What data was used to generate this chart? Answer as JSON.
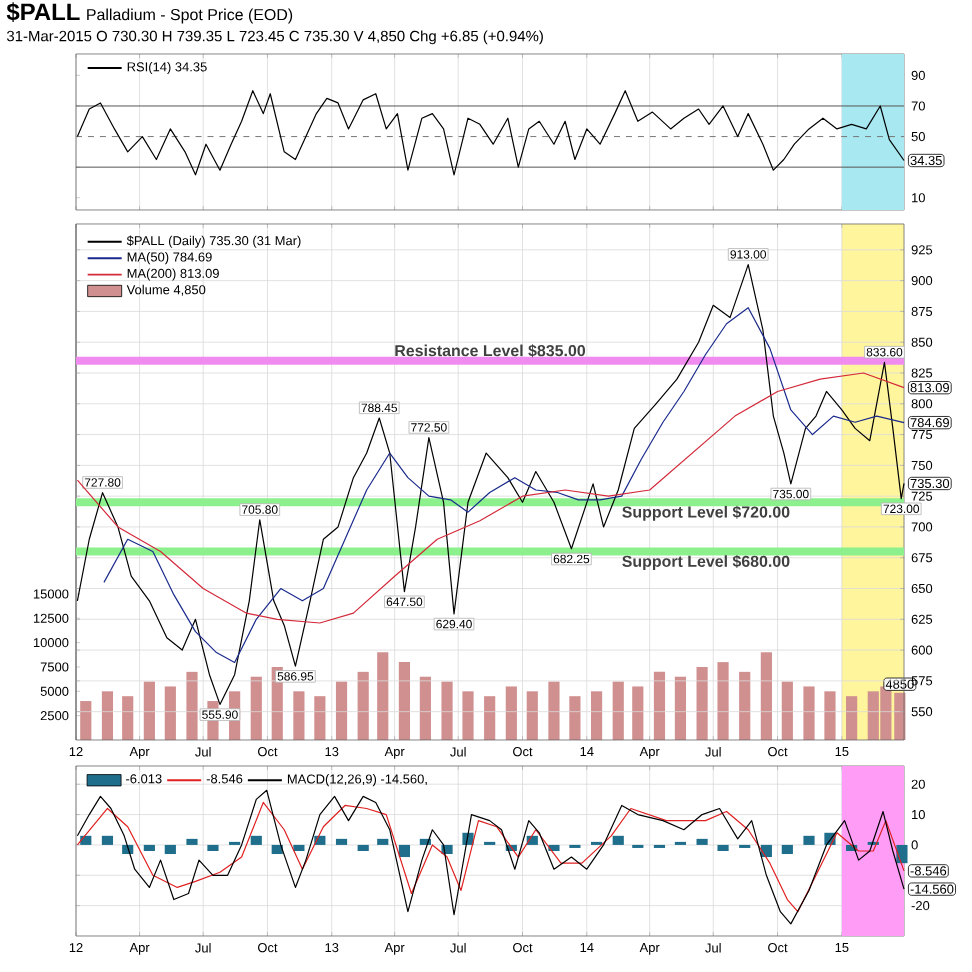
{
  "chart_data": [
    {
      "type": "line",
      "title": "$PALL",
      "subtitle": "Palladium - Spot Price (EOD)",
      "annotations": [
        "31-Mar-2015  O 730.30  H 739.35  L 723.45  C 735.30  V 4,850  Chg +6.85 (+0.94%)"
      ],
      "xlim": [
        "2012-01-01",
        "2015-03-31"
      ],
      "xticks": [
        {
          "value": "2012-01-01",
          "label": null
        },
        {
          "value": "2012-04-01",
          "label": null
        },
        {
          "value": "2012-07-01",
          "label": null
        },
        {
          "value": "2012-10-01",
          "label": null
        },
        {
          "value": "2013-01-01",
          "label": null
        },
        {
          "value": "2013-04-01",
          "label": null
        },
        {
          "value": "2013-07-01",
          "label": null
        },
        {
          "value": "2013-10-01",
          "label": null
        },
        {
          "value": "2014-01-01",
          "label": null
        },
        {
          "value": "2014-04-01",
          "label": null
        },
        {
          "value": "2014-07-01",
          "label": null
        },
        {
          "value": "2014-10-01",
          "label": null
        },
        {
          "value": "2015-01-01",
          "label": null
        }
      ],
      "ylim": [
        2,
        104
      ],
      "yticks": [
        10,
        {
          "value": 30,
          "label": null
        },
        50,
        70,
        90
      ],
      "tick_labels": "y",
      "grid": "x",
      "legend": "top left",
      "bands": [
        {
          "axis": "x",
          "from": "2015-01-01",
          "to": "2015-03-31",
          "color": "#a8e8f0"
        }
      ],
      "ref_lines": [
        {
          "axis": "y",
          "value": 70,
          "color": "#555555"
        },
        {
          "axis": "y",
          "value": 50,
          "color": "#777777",
          "line_style": "dashed"
        },
        {
          "axis": "y",
          "value": 30,
          "color": "#555555"
        }
      ],
      "series": [
        {
          "name": "RSI(14) 34.35",
          "color": "#000000",
          "x": [
            "2012-01-03",
            "2012-01-20",
            "2012-02-05",
            "2012-02-25",
            "2012-03-15",
            "2012-04-05",
            "2012-04-25",
            "2012-05-15",
            "2012-06-05",
            "2012-06-20",
            "2012-07-05",
            "2012-07-25",
            "2012-08-10",
            "2012-08-25",
            "2012-09-10",
            "2012-09-25",
            "2012-10-05",
            "2012-10-25",
            "2012-11-10",
            "2012-11-25",
            "2012-12-10",
            "2012-12-25",
            "2013-01-10",
            "2013-01-25",
            "2013-02-15",
            "2013-03-05",
            "2013-03-20",
            "2013-04-05",
            "2013-04-20",
            "2013-05-10",
            "2013-05-25",
            "2013-06-10",
            "2013-06-25",
            "2013-07-15",
            "2013-08-01",
            "2013-08-20",
            "2013-09-10",
            "2013-09-25",
            "2013-10-10",
            "2013-10-25",
            "2013-11-15",
            "2013-12-01",
            "2013-12-15",
            "2014-01-01",
            "2014-01-20",
            "2014-02-10",
            "2014-02-25",
            "2014-03-15",
            "2014-04-05",
            "2014-05-01",
            "2014-05-20",
            "2014-06-10",
            "2014-06-25",
            "2014-07-15",
            "2014-08-05",
            "2014-08-20",
            "2014-09-10",
            "2014-09-25",
            "2014-10-10",
            "2014-10-25",
            "2014-11-15",
            "2014-12-05",
            "2014-12-25",
            "2015-01-15",
            "2015-02-05",
            "2015-02-25",
            "2015-03-10",
            "2015-03-31"
          ],
          "values": [
            50,
            68,
            72,
            55,
            40,
            50,
            35,
            55,
            40,
            25,
            45,
            28,
            45,
            60,
            80,
            65,
            78,
            40,
            35,
            50,
            65,
            75,
            72,
            55,
            74,
            78,
            55,
            65,
            28,
            62,
            65,
            55,
            25,
            62,
            58,
            45,
            62,
            30,
            55,
            60,
            45,
            60,
            35,
            55,
            45,
            65,
            80,
            60,
            66,
            55,
            62,
            68,
            58,
            70,
            50,
            65,
            45,
            28,
            35,
            45,
            55,
            62,
            55,
            58,
            55,
            70,
            48,
            34.35
          ],
          "value_labels": [
            null,
            null,
            null,
            null,
            null,
            null,
            null,
            null,
            null,
            null,
            null,
            null,
            null,
            null,
            null,
            null,
            null,
            null,
            null,
            null,
            null,
            null,
            null,
            null,
            null,
            null,
            null,
            null,
            null,
            null,
            null,
            null,
            null,
            null,
            null,
            null,
            null,
            null,
            null,
            null,
            null,
            null,
            null,
            null,
            null,
            null,
            null,
            null,
            null,
            null,
            null,
            null,
            null,
            null,
            null,
            null,
            null,
            null,
            null,
            null,
            null,
            null,
            null,
            null,
            null,
            null,
            null,
            "34.35"
          ]
        }
      ]
    },
    {
      "type": "line",
      "xlim": [
        "2012-01-01",
        "2015-03-31"
      ],
      "xticks": [
        {
          "value": "2012-01-01",
          "label": "12"
        },
        {
          "value": "2012-04-01",
          "label": "Apr"
        },
        {
          "value": "2012-07-01",
          "label": "Jul"
        },
        {
          "value": "2012-10-01",
          "label": "Oct"
        },
        {
          "value": "2013-01-01",
          "label": "13"
        },
        {
          "value": "2013-04-01",
          "label": "Apr"
        },
        {
          "value": "2013-07-01",
          "label": "Jul"
        },
        {
          "value": "2013-10-01",
          "label": "Oct"
        },
        {
          "value": "2014-01-01",
          "label": "14"
        },
        {
          "value": "2014-04-01",
          "label": "Apr"
        },
        {
          "value": "2014-07-01",
          "label": "Jul"
        },
        {
          "value": "2014-10-01",
          "label": "Oct"
        },
        {
          "value": "2015-01-01",
          "label": "15"
        }
      ],
      "ylim": [
        527,
        946
      ],
      "yticks": [
        550,
        575,
        600,
        625,
        650,
        675,
        700,
        725,
        750,
        775,
        800,
        825,
        850,
        875,
        900,
        925
      ],
      "y2lim": [
        0,
        53000
      ],
      "y2ticks": [
        2500,
        5000,
        7500,
        10000,
        12500,
        15000
      ],
      "grid": true,
      "legend": "top left",
      "bands": [
        {
          "axis": "x",
          "from": "2015-01-01",
          "to": "2015-03-31",
          "color": "#fff59d"
        }
      ],
      "ref_lines": [
        {
          "axis": "y",
          "value": 835,
          "label": "Resistance Level $835.00",
          "color": "#f08cf0"
        },
        {
          "axis": "y",
          "value": 720,
          "label": "Support Level $720.00",
          "color": "#8cf08c"
        },
        {
          "axis": "y",
          "value": 680,
          "label": "Support Level $680.00",
          "color": "#8cf08c"
        }
      ],
      "series": [
        {
          "name": "Volume 4,850",
          "type": "bar",
          "axis": "y2",
          "color": "#d09090",
          "x": [
            "2012-01-15",
            "2012-02-15",
            "2012-03-15",
            "2012-04-15",
            "2012-05-15",
            "2012-06-15",
            "2012-07-15",
            "2012-08-15",
            "2012-09-15",
            "2012-10-15",
            "2012-11-15",
            "2012-12-15",
            "2013-01-15",
            "2013-02-15",
            "2013-03-15",
            "2013-04-15",
            "2013-05-15",
            "2013-06-15",
            "2013-07-15",
            "2013-08-15",
            "2013-09-15",
            "2013-10-15",
            "2013-11-15",
            "2013-12-15",
            "2014-01-15",
            "2014-02-15",
            "2014-03-15",
            "2014-04-15",
            "2014-05-15",
            "2014-06-15",
            "2014-07-15",
            "2014-08-15",
            "2014-09-15",
            "2014-10-15",
            "2014-11-15",
            "2014-12-15",
            "2015-01-15",
            "2015-02-15",
            "2015-03-05",
            "2015-03-25"
          ],
          "values": [
            4000,
            5000,
            4500,
            6000,
            5500,
            7000,
            4000,
            5000,
            6500,
            7500,
            5000,
            4500,
            6000,
            7000,
            9000,
            8000,
            6500,
            6000,
            5000,
            4500,
            5500,
            5000,
            6000,
            4500,
            5000,
            6000,
            5500,
            7000,
            6500,
            7500,
            8000,
            7000,
            9000,
            6000,
            5500,
            5000,
            4500,
            5000,
            5500,
            4850
          ],
          "value_labels": [
            null,
            null,
            null,
            null,
            null,
            null,
            null,
            null,
            null,
            null,
            null,
            null,
            null,
            null,
            null,
            null,
            null,
            null,
            null,
            null,
            null,
            null,
            null,
            null,
            null,
            null,
            null,
            null,
            null,
            null,
            null,
            null,
            null,
            null,
            null,
            null,
            null,
            null,
            null,
            "4850"
          ]
        },
        {
          "name": "$PALL (Daily) 735.30 (31 Mar)",
          "color": "#000000",
          "x": [
            "2012-01-03",
            "2012-01-20",
            "2012-02-08",
            "2012-03-01",
            "2012-03-20",
            "2012-04-15",
            "2012-05-10",
            "2012-06-01",
            "2012-06-20",
            "2012-07-10",
            "2012-07-25",
            "2012-08-15",
            "2012-09-05",
            "2012-09-20",
            "2012-10-10",
            "2012-10-25",
            "2012-11-10",
            "2012-12-01",
            "2012-12-20",
            "2013-01-10",
            "2013-02-01",
            "2013-02-20",
            "2013-03-10",
            "2013-03-25",
            "2013-04-15",
            "2013-05-01",
            "2013-05-20",
            "2013-06-10",
            "2013-06-25",
            "2013-07-15",
            "2013-08-10",
            "2013-09-10",
            "2013-10-01",
            "2013-10-20",
            "2013-11-15",
            "2013-12-10",
            "2014-01-10",
            "2014-01-25",
            "2014-02-15",
            "2014-03-10",
            "2014-04-10",
            "2014-05-10",
            "2014-06-10",
            "2014-07-01",
            "2014-07-25",
            "2014-08-20",
            "2014-09-10",
            "2014-09-25",
            "2014-10-10",
            "2014-10-20",
            "2014-11-10",
            "2014-11-25",
            "2014-12-10",
            "2015-01-01",
            "2015-01-20",
            "2015-02-10",
            "2015-03-03",
            "2015-03-15",
            "2015-03-27",
            "2015-03-31"
          ],
          "values": [
            640,
            690,
            727.8,
            700,
            660,
            640,
            610,
            600,
            625,
            580,
            555.9,
            580,
            640,
            705.8,
            640,
            620,
            586.95,
            640,
            690,
            700,
            740,
            760,
            788.45,
            760,
            647.5,
            700,
            772.5,
            720,
            629.4,
            720,
            760,
            740,
            720,
            745,
            720,
            682.25,
            735,
            700,
            730,
            780,
            800,
            820,
            850,
            880,
            870,
            913,
            860,
            790,
            760,
            735,
            780,
            790,
            810,
            795,
            780,
            770,
            833.6,
            780,
            723,
            735.3
          ],
          "value_labels": [
            null,
            null,
            "727.80",
            null,
            null,
            null,
            null,
            null,
            null,
            null,
            "555.90",
            null,
            null,
            "705.80",
            null,
            null,
            "586.95",
            null,
            null,
            null,
            null,
            null,
            "788.45",
            null,
            "647.50",
            null,
            "772.50",
            null,
            "629.40",
            null,
            null,
            null,
            null,
            null,
            null,
            "682.25",
            null,
            null,
            null,
            null,
            null,
            null,
            null,
            null,
            null,
            "913.00",
            null,
            null,
            null,
            "735.00",
            null,
            null,
            null,
            null,
            null,
            null,
            "833.60",
            null,
            "723.00",
            "735.30"
          ]
        },
        {
          "name": "MA(50) 784.69",
          "color": "#1a2a8c",
          "x": [
            "2012-02-10",
            "2012-03-15",
            "2012-04-20",
            "2012-05-20",
            "2012-06-20",
            "2012-07-20",
            "2012-08-15",
            "2012-09-15",
            "2012-10-20",
            "2012-11-20",
            "2012-12-20",
            "2013-01-20",
            "2013-02-20",
            "2013-03-25",
            "2013-04-20",
            "2013-05-20",
            "2013-06-20",
            "2013-07-15",
            "2013-08-15",
            "2013-09-20",
            "2013-10-20",
            "2013-11-20",
            "2013-12-20",
            "2014-01-20",
            "2014-02-20",
            "2014-03-20",
            "2014-04-20",
            "2014-05-20",
            "2014-06-20",
            "2014-07-20",
            "2014-08-20",
            "2014-09-20",
            "2014-10-20",
            "2014-11-20",
            "2014-12-20",
            "2015-01-20",
            "2015-02-20",
            "2015-03-31"
          ],
          "values": [
            655,
            690,
            680,
            645,
            615,
            598,
            590,
            625,
            650,
            640,
            650,
            690,
            730,
            760,
            740,
            725,
            722,
            712,
            728,
            740,
            730,
            728,
            722,
            722,
            725,
            755,
            785,
            810,
            840,
            865,
            878,
            845,
            795,
            775,
            790,
            785,
            790,
            784.69
          ],
          "value_labels": [
            null,
            null,
            null,
            null,
            null,
            null,
            null,
            null,
            null,
            null,
            null,
            null,
            null,
            null,
            null,
            null,
            null,
            null,
            null,
            null,
            null,
            null,
            null,
            null,
            null,
            null,
            null,
            null,
            null,
            null,
            null,
            null,
            null,
            null,
            null,
            null,
            null,
            "784.69"
          ]
        },
        {
          "name": "MA(200) 813.09",
          "color": "#d42a3a",
          "x": [
            "2012-01-03",
            "2012-03-01",
            "2012-05-01",
            "2012-07-01",
            "2012-09-01",
            "2012-10-15",
            "2012-12-15",
            "2013-02-01",
            "2013-04-01",
            "2013-06-01",
            "2013-08-01",
            "2013-10-01",
            "2013-12-01",
            "2014-02-01",
            "2014-04-01",
            "2014-06-01",
            "2014-08-01",
            "2014-10-01",
            "2014-12-01",
            "2015-02-01",
            "2015-03-31"
          ],
          "values": [
            738,
            700,
            680,
            650,
            630,
            625,
            622,
            630,
            660,
            690,
            705,
            725,
            730,
            725,
            730,
            760,
            790,
            810,
            820,
            825,
            813.09
          ],
          "value_labels": [
            null,
            null,
            null,
            null,
            null,
            null,
            null,
            null,
            null,
            null,
            null,
            null,
            null,
            null,
            null,
            null,
            null,
            null,
            null,
            null,
            "813.09"
          ]
        }
      ]
    },
    {
      "type": "line",
      "xlim": [
        "2012-01-01",
        "2015-03-31"
      ],
      "xticks": [
        {
          "value": "2012-01-01",
          "label": "12"
        },
        {
          "value": "2012-04-01",
          "label": "Apr"
        },
        {
          "value": "2012-07-01",
          "label": "Jul"
        },
        {
          "value": "2012-10-01",
          "label": "Oct"
        },
        {
          "value": "2013-01-01",
          "label": "13"
        },
        {
          "value": "2013-04-01",
          "label": "Apr"
        },
        {
          "value": "2013-07-01",
          "label": "Jul"
        },
        {
          "value": "2013-10-01",
          "label": "Oct"
        },
        {
          "value": "2014-01-01",
          "label": "14"
        },
        {
          "value": "2014-04-01",
          "label": "Apr"
        },
        {
          "value": "2014-07-01",
          "label": "Jul"
        },
        {
          "value": "2014-10-01",
          "label": "Oct"
        },
        {
          "value": "2015-01-01",
          "label": "15"
        }
      ],
      "ylim": [
        -30,
        26
      ],
      "yticks": [
        -20,
        {
          "value": -10,
          "label": null
        },
        0,
        10,
        20
      ],
      "grid": true,
      "legend": "top left",
      "bands": [
        {
          "axis": "x",
          "from": "2015-01-01",
          "to": "2015-03-31",
          "color": "#ff9cf5"
        }
      ],
      "series": [
        {
          "name": "-6.013",
          "type": "bar",
          "color": "#1f6e8c",
          "x": [
            "2012-01-15",
            "2012-02-15",
            "2012-03-15",
            "2012-04-15",
            "2012-05-15",
            "2012-06-15",
            "2012-07-15",
            "2012-08-15",
            "2012-09-15",
            "2012-10-15",
            "2012-11-15",
            "2012-12-15",
            "2013-01-15",
            "2013-02-15",
            "2013-03-15",
            "2013-04-15",
            "2013-05-15",
            "2013-06-15",
            "2013-07-15",
            "2013-08-15",
            "2013-09-15",
            "2013-10-15",
            "2013-11-15",
            "2013-12-15",
            "2014-01-15",
            "2014-02-15",
            "2014-03-15",
            "2014-04-15",
            "2014-05-15",
            "2014-06-15",
            "2014-07-15",
            "2014-08-15",
            "2014-09-15",
            "2014-10-15",
            "2014-11-15",
            "2014-12-15",
            "2015-01-15",
            "2015-02-15",
            "2015-03-28"
          ],
          "values": [
            3,
            3,
            -3,
            -2,
            -3,
            2,
            -2,
            1,
            3,
            -3,
            -2,
            3,
            2,
            -2,
            2,
            -4,
            2,
            -3,
            4,
            1,
            -2,
            3,
            -2,
            -1,
            1,
            3,
            -1,
            -1,
            1,
            2,
            -2,
            -1,
            -4,
            -3,
            3,
            4,
            -2,
            1,
            -6.013
          ]
        },
        {
          "name": "-8.546",
          "color": "#e02020",
          "x": [
            "2012-01-03",
            "2012-02-15",
            "2012-03-15",
            "2012-04-20",
            "2012-05-25",
            "2012-06-20",
            "2012-07-25",
            "2012-08-25",
            "2012-09-25",
            "2012-10-25",
            "2012-11-20",
            "2012-12-20",
            "2013-01-20",
            "2013-02-20",
            "2013-03-20",
            "2013-04-25",
            "2013-05-25",
            "2013-06-15",
            "2013-07-05",
            "2013-07-30",
            "2013-08-25",
            "2013-09-25",
            "2013-10-20",
            "2013-11-25",
            "2013-12-25",
            "2014-02-05",
            "2014-03-05",
            "2014-04-25",
            "2014-06-20",
            "2014-07-20",
            "2014-08-20",
            "2014-09-20",
            "2014-10-15",
            "2014-10-30",
            "2014-11-25",
            "2014-12-25",
            "2015-01-25",
            "2015-02-15",
            "2015-03-05",
            "2015-03-31"
          ],
          "values": [
            0,
            12,
            6,
            -10,
            -14,
            -12,
            -9,
            -4,
            14,
            5,
            -8,
            6,
            13,
            12,
            10,
            -16,
            0,
            -4,
            -15,
            8,
            6,
            -4,
            5,
            -6,
            -6,
            3,
            12,
            8,
            8,
            11,
            5,
            -6,
            -18,
            -22,
            -10,
            4,
            -2,
            -2,
            8,
            -8.546
          ],
          "value_labels": [
            null,
            null,
            null,
            null,
            null,
            null,
            null,
            null,
            null,
            null,
            null,
            null,
            null,
            null,
            null,
            null,
            null,
            null,
            null,
            null,
            null,
            null,
            null,
            null,
            null,
            null,
            null,
            null,
            null,
            null,
            null,
            null,
            null,
            null,
            null,
            null,
            null,
            null,
            null,
            "-8.546"
          ]
        },
        {
          "name": "MACD(12,26,9) -14.560,",
          "color": "#000000",
          "x": [
            "2012-01-03",
            "2012-01-20",
            "2012-02-05",
            "2012-02-20",
            "2012-03-10",
            "2012-03-25",
            "2012-04-15",
            "2012-05-01",
            "2012-05-20",
            "2012-06-10",
            "2012-06-25",
            "2012-07-15",
            "2012-08-05",
            "2012-08-25",
            "2012-09-15",
            "2012-09-30",
            "2012-10-20",
            "2012-11-10",
            "2012-11-25",
            "2012-12-15",
            "2013-01-05",
            "2013-01-25",
            "2013-02-15",
            "2013-03-05",
            "2013-03-25",
            "2013-04-20",
            "2013-05-10",
            "2013-05-25",
            "2013-06-10",
            "2013-06-25",
            "2013-07-20",
            "2013-08-15",
            "2013-09-01",
            "2013-09-20",
            "2013-10-10",
            "2013-10-25",
            "2013-11-15",
            "2013-12-10",
            "2014-01-01",
            "2014-01-25",
            "2014-02-20",
            "2014-03-15",
            "2014-04-20",
            "2014-05-20",
            "2014-06-15",
            "2014-07-10",
            "2014-08-05",
            "2014-08-25",
            "2014-09-15",
            "2014-10-05",
            "2014-10-20",
            "2014-11-15",
            "2014-12-10",
            "2015-01-05",
            "2015-01-25",
            "2015-02-10",
            "2015-03-01",
            "2015-03-15",
            "2015-03-31"
          ],
          "values": [
            3,
            10,
            16,
            12,
            3,
            -8,
            -14,
            -5,
            -18,
            -16,
            -5,
            -10,
            -10,
            0,
            15,
            18,
            0,
            -14,
            -5,
            10,
            16,
            8,
            16,
            14,
            5,
            -22,
            -5,
            5,
            0,
            -23,
            10,
            8,
            5,
            -8,
            8,
            4,
            -8,
            -4,
            -8,
            0,
            13,
            10,
            8,
            5,
            10,
            12,
            2,
            8,
            -10,
            -22,
            -26,
            -15,
            0,
            8,
            -5,
            -2,
            11,
            -2,
            -14.56
          ],
          "value_labels": [
            null,
            null,
            null,
            null,
            null,
            null,
            null,
            null,
            null,
            null,
            null,
            null,
            null,
            null,
            null,
            null,
            null,
            null,
            null,
            null,
            null,
            null,
            null,
            null,
            null,
            null,
            null,
            null,
            null,
            null,
            null,
            null,
            null,
            null,
            null,
            null,
            null,
            null,
            null,
            null,
            null,
            null,
            null,
            null,
            null,
            null,
            null,
            null,
            null,
            null,
            null,
            null,
            null,
            null,
            null,
            null,
            null,
            null,
            "-14.560"
          ]
        }
      ]
    }
  ]
}
